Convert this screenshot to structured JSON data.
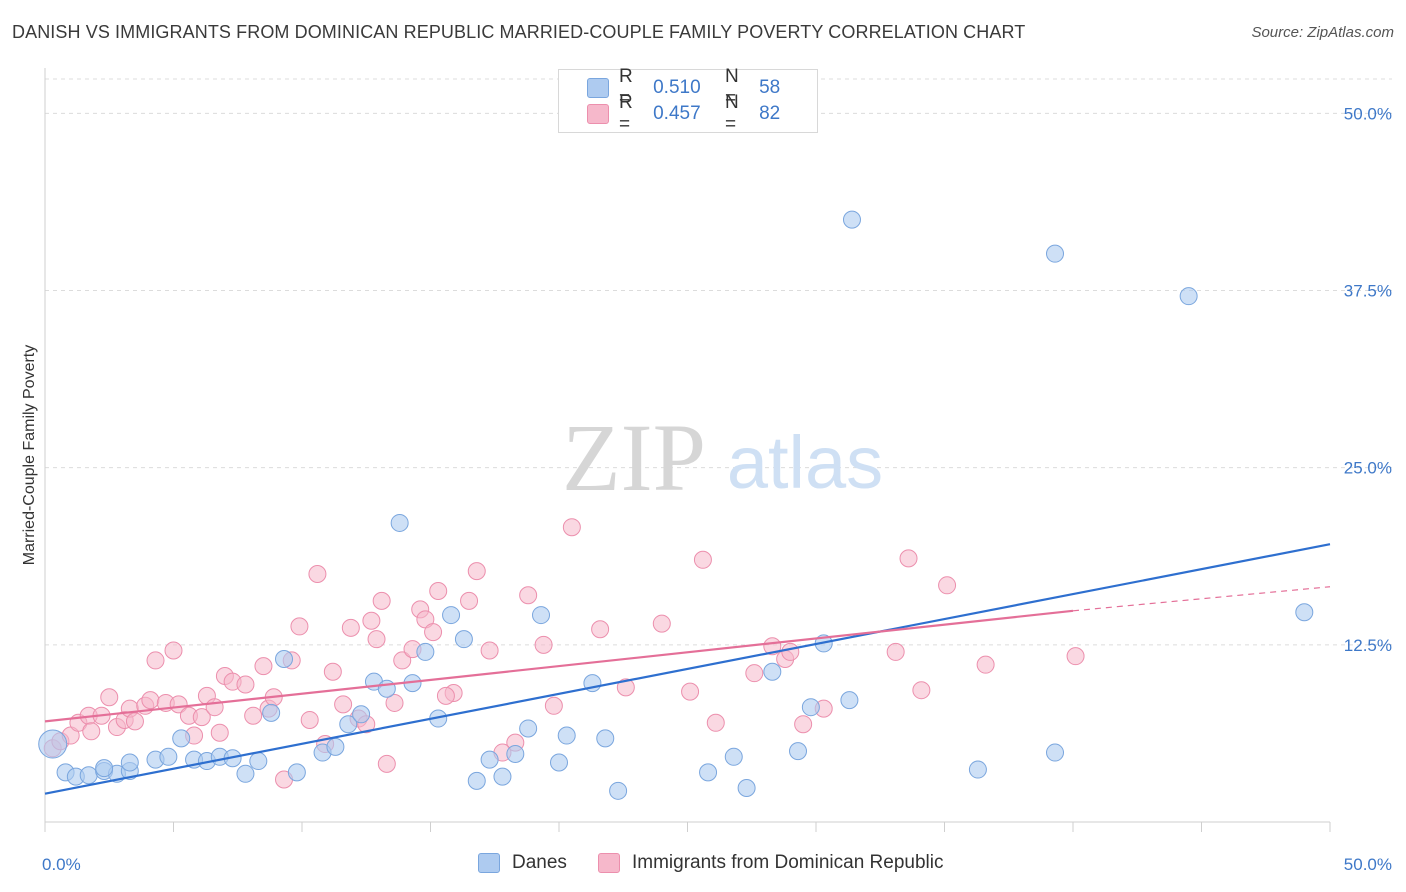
{
  "title": "DANISH VS IMMIGRANTS FROM DOMINICAN REPUBLIC MARRIED-COUPLE FAMILY POVERTY CORRELATION CHART",
  "source": "Source: ZipAtlas.com",
  "watermark": {
    "zip": "ZIP",
    "atlas": "atlas"
  },
  "legend_top": {
    "r_label": "R =",
    "n_label": "N =",
    "rows": [
      {
        "r": "0.510",
        "n": "58"
      },
      {
        "r": "0.457",
        "n": "82"
      }
    ]
  },
  "colors": {
    "danes_fill": "#aecbf0",
    "danes_stroke": "#7aa6de",
    "danes_line": "#2e6fcf",
    "dom_fill": "#f6b8cb",
    "dom_stroke": "#ec8fad",
    "dom_line": "#e46f98",
    "tick_label": "#3e78c8",
    "grid": "#dcdcdc"
  },
  "chart_data": {
    "type": "scatter",
    "title": "DANISH VS IMMIGRANTS FROM DOMINICAN REPUBLIC MARRIED-COUPLE FAMILY POVERTY CORRELATION CHART",
    "xlabel": "",
    "ylabel": "Married-Couple Family Poverty",
    "xlim": [
      0,
      50
    ],
    "ylim": [
      0,
      52
    ],
    "x_tick_labels": [
      "0.0%",
      "50.0%"
    ],
    "y_ticks": [
      12.5,
      25.0,
      37.5,
      50.0
    ],
    "y_tick_labels": [
      "12.5%",
      "25.0%",
      "37.5%",
      "50.0%"
    ],
    "grid": "horizontal dashed",
    "legend_position": "top-center and bottom",
    "series": [
      {
        "name": "Danes",
        "points": [
          [
            0.3,
            5.5
          ],
          [
            0.8,
            3.5
          ],
          [
            1.2,
            3.2
          ],
          [
            1.7,
            3.3
          ],
          [
            2.3,
            3.6
          ],
          [
            2.8,
            3.4
          ],
          [
            3.3,
            3.6
          ],
          [
            3.3,
            4.2
          ],
          [
            4.3,
            4.4
          ],
          [
            4.8,
            4.6
          ],
          [
            5.3,
            5.9
          ],
          [
            5.8,
            4.4
          ],
          [
            6.3,
            4.3
          ],
          [
            6.8,
            4.6
          ],
          [
            7.3,
            4.5
          ],
          [
            7.8,
            3.4
          ],
          [
            8.3,
            4.3
          ],
          [
            8.8,
            7.7
          ],
          [
            9.3,
            11.5
          ],
          [
            9.8,
            3.5
          ],
          [
            10.8,
            4.9
          ],
          [
            11.3,
            5.3
          ],
          [
            11.8,
            6.9
          ],
          [
            12.3,
            7.6
          ],
          [
            12.8,
            9.9
          ],
          [
            13.3,
            9.4
          ],
          [
            13.8,
            21.1
          ],
          [
            14.3,
            9.8
          ],
          [
            14.8,
            12.0
          ],
          [
            15.3,
            7.3
          ],
          [
            15.8,
            14.6
          ],
          [
            16.3,
            12.9
          ],
          [
            16.8,
            2.9
          ],
          [
            17.3,
            4.4
          ],
          [
            17.8,
            3.2
          ],
          [
            18.3,
            4.8
          ],
          [
            18.8,
            6.6
          ],
          [
            19.3,
            14.6
          ],
          [
            20.0,
            4.2
          ],
          [
            20.3,
            6.1
          ],
          [
            21.3,
            9.8
          ],
          [
            21.8,
            5.9
          ],
          [
            22.3,
            2.2
          ],
          [
            25.8,
            3.5
          ],
          [
            26.8,
            4.6
          ],
          [
            27.3,
            2.4
          ],
          [
            28.3,
            10.6
          ],
          [
            29.3,
            5.0
          ],
          [
            29.8,
            8.1
          ],
          [
            30.3,
            12.6
          ],
          [
            31.3,
            8.6
          ],
          [
            31.4,
            42.5
          ],
          [
            36.3,
            3.7
          ],
          [
            39.3,
            40.1
          ],
          [
            39.3,
            4.9
          ],
          [
            44.5,
            37.1
          ],
          [
            49.0,
            14.8
          ],
          [
            2.3,
            3.8
          ]
        ],
        "trend": {
          "x": [
            0,
            50
          ],
          "y": [
            2.0,
            19.6
          ]
        }
      },
      {
        "name": "Immigrants from Dominican Republic",
        "points": [
          [
            0.3,
            5.2
          ],
          [
            0.6,
            5.7
          ],
          [
            1.0,
            6.1
          ],
          [
            1.3,
            7.0
          ],
          [
            1.7,
            7.5
          ],
          [
            1.8,
            6.4
          ],
          [
            2.2,
            7.5
          ],
          [
            2.5,
            8.8
          ],
          [
            2.8,
            6.7
          ],
          [
            3.1,
            7.2
          ],
          [
            3.3,
            8.0
          ],
          [
            3.5,
            7.1
          ],
          [
            3.9,
            8.2
          ],
          [
            4.1,
            8.6
          ],
          [
            4.3,
            11.4
          ],
          [
            4.7,
            8.4
          ],
          [
            5.0,
            12.1
          ],
          [
            5.2,
            8.3
          ],
          [
            5.6,
            7.5
          ],
          [
            5.8,
            6.1
          ],
          [
            6.1,
            7.4
          ],
          [
            6.3,
            8.9
          ],
          [
            6.6,
            8.1
          ],
          [
            6.8,
            6.3
          ],
          [
            7.0,
            10.3
          ],
          [
            7.3,
            9.9
          ],
          [
            7.8,
            9.7
          ],
          [
            8.1,
            7.5
          ],
          [
            8.5,
            11.0
          ],
          [
            8.7,
            8.0
          ],
          [
            8.9,
            8.8
          ],
          [
            9.3,
            3.0
          ],
          [
            9.6,
            11.4
          ],
          [
            9.9,
            13.8
          ],
          [
            10.3,
            7.2
          ],
          [
            10.6,
            17.5
          ],
          [
            10.9,
            5.5
          ],
          [
            11.2,
            10.6
          ],
          [
            11.6,
            8.3
          ],
          [
            11.9,
            13.7
          ],
          [
            12.2,
            7.3
          ],
          [
            12.5,
            6.9
          ],
          [
            12.7,
            14.2
          ],
          [
            12.9,
            12.9
          ],
          [
            13.1,
            15.6
          ],
          [
            13.3,
            4.1
          ],
          [
            13.6,
            8.4
          ],
          [
            13.9,
            11.4
          ],
          [
            14.3,
            12.2
          ],
          [
            14.6,
            15.0
          ],
          [
            14.8,
            14.3
          ],
          [
            15.1,
            13.4
          ],
          [
            15.3,
            16.3
          ],
          [
            15.9,
            9.1
          ],
          [
            16.5,
            15.6
          ],
          [
            16.8,
            17.7
          ],
          [
            17.3,
            12.1
          ],
          [
            18.3,
            5.6
          ],
          [
            18.8,
            16.0
          ],
          [
            19.4,
            12.5
          ],
          [
            19.8,
            8.2
          ],
          [
            20.5,
            20.8
          ],
          [
            21.6,
            13.6
          ],
          [
            22.6,
            9.5
          ],
          [
            24.0,
            14.0
          ],
          [
            25.1,
            9.2
          ],
          [
            25.6,
            18.5
          ],
          [
            26.1,
            7.0
          ],
          [
            27.6,
            10.5
          ],
          [
            28.3,
            12.4
          ],
          [
            28.8,
            11.5
          ],
          [
            29.0,
            12.0
          ],
          [
            29.5,
            6.9
          ],
          [
            30.3,
            8.0
          ],
          [
            33.1,
            12.0
          ],
          [
            33.6,
            18.6
          ],
          [
            34.1,
            9.3
          ],
          [
            35.1,
            16.7
          ],
          [
            36.6,
            11.1
          ],
          [
            40.1,
            11.7
          ],
          [
            17.8,
            4.9
          ],
          [
            15.6,
            8.9
          ]
        ],
        "trend": {
          "x": [
            0,
            40
          ],
          "y": [
            7.1,
            14.9
          ]
        },
        "trend_dashed": {
          "x": [
            40,
            50
          ],
          "y": [
            14.9,
            16.6
          ]
        }
      }
    ]
  },
  "legend_bottom": [
    {
      "label": "Danes"
    },
    {
      "label": "Immigrants from Dominican Republic"
    }
  ]
}
